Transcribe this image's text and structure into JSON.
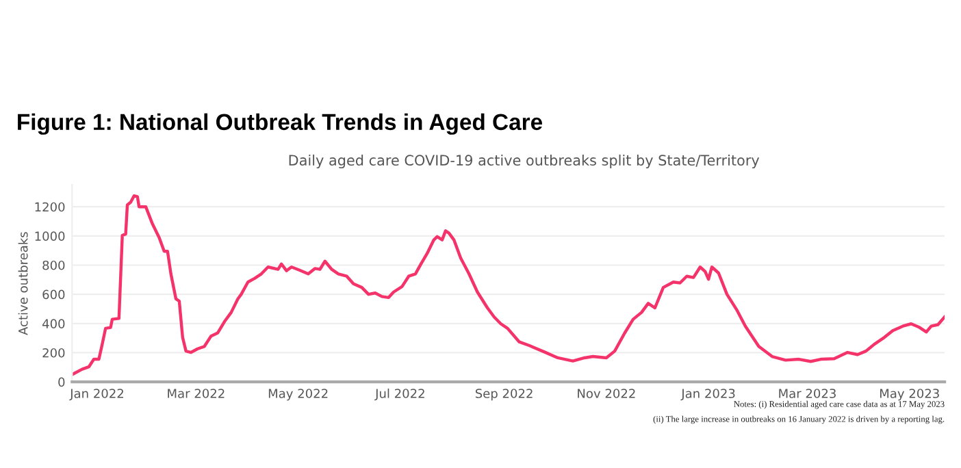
{
  "chart_data": {
    "type": "line",
    "title": "Figure 1: National Outbreak Trends in Aged Care",
    "subtitle": "Daily aged care COVID-19 active outbreaks split by State/Territory",
    "ylabel": "Active outbreaks",
    "annotations": [
      "Notes: (i) Residential aged care case data as at 17 May 2023",
      "(ii) The large increase in outbreaks on 16 January 2022 is driven by a reporting lag."
    ],
    "x": [
      "2021-12-17",
      "2021-12-23",
      "2021-12-27",
      "2021-12-30",
      "2022-01-02",
      "2022-01-04",
      "2022-01-06",
      "2022-01-09",
      "2022-01-10",
      "2022-01-14",
      "2022-01-16",
      "2022-01-18",
      "2022-01-19",
      "2022-01-21",
      "2022-01-23",
      "2022-01-25",
      "2022-01-26",
      "2022-01-30",
      "2022-02-03",
      "2022-02-07",
      "2022-02-10",
      "2022-02-12",
      "2022-02-14",
      "2022-02-17",
      "2022-02-19",
      "2022-02-21",
      "2022-02-23",
      "2022-02-26",
      "2022-03-02",
      "2022-03-06",
      "2022-03-10",
      "2022-03-14",
      "2022-03-18",
      "2022-03-22",
      "2022-03-26",
      "2022-03-28",
      "2022-04-01",
      "2022-04-05",
      "2022-04-09",
      "2022-04-13",
      "2022-04-19",
      "2022-04-21",
      "2022-04-24",
      "2022-04-27",
      "2022-05-02",
      "2022-05-07",
      "2022-05-11",
      "2022-05-14",
      "2022-05-17",
      "2022-05-21",
      "2022-05-25",
      "2022-05-30",
      "2022-06-03",
      "2022-06-08",
      "2022-06-12",
      "2022-06-16",
      "2022-06-20",
      "2022-06-24",
      "2022-06-27",
      "2022-07-02",
      "2022-07-06",
      "2022-07-10",
      "2022-07-13",
      "2022-07-17",
      "2022-07-21",
      "2022-07-23",
      "2022-07-26",
      "2022-07-28",
      "2022-07-30",
      "2022-08-02",
      "2022-08-06",
      "2022-08-11",
      "2022-08-16",
      "2022-08-22",
      "2022-08-26",
      "2022-08-30",
      "2022-09-03",
      "2022-09-10",
      "2022-09-16",
      "2022-09-25",
      "2022-10-03",
      "2022-10-12",
      "2022-10-19",
      "2022-10-24",
      "2022-11-01",
      "2022-11-06",
      "2022-11-12",
      "2022-11-17",
      "2022-11-22",
      "2022-11-26",
      "2022-11-30",
      "2022-12-05",
      "2022-12-11",
      "2022-12-15",
      "2022-12-19",
      "2022-12-23",
      "2022-12-27",
      "2022-12-30",
      "2023-01-01",
      "2023-01-03",
      "2023-01-07",
      "2023-01-12",
      "2023-01-18",
      "2023-01-23",
      "2023-01-31",
      "2023-02-08",
      "2023-02-16",
      "2023-02-24",
      "2023-03-03",
      "2023-03-09",
      "2023-03-17",
      "2023-03-25",
      "2023-03-31",
      "2023-04-05",
      "2023-04-10",
      "2023-04-16",
      "2023-04-21",
      "2023-04-27",
      "2023-05-02",
      "2023-05-07",
      "2023-05-11",
      "2023-05-14",
      "2023-05-18",
      "2023-05-22"
    ],
    "series": [
      {
        "color": "#f5336b",
        "values": [
          50,
          87,
          103,
          155,
          155,
          258,
          367,
          373,
          429,
          435,
          1004,
          1013,
          1213,
          1231,
          1275,
          1269,
          1200,
          1200,
          1082,
          989,
          895,
          895,
          740,
          569,
          553,
          305,
          211,
          202,
          227,
          243,
          314,
          336,
          413,
          476,
          569,
          600,
          684,
          709,
          740,
          787,
          771,
          808,
          762,
          787,
          765,
          740,
          777,
          771,
          827,
          771,
          740,
          724,
          672,
          647,
          600,
          609,
          585,
          578,
          616,
          653,
          724,
          740,
          802,
          880,
          973,
          995,
          973,
          1035,
          1020,
          973,
          849,
          740,
          616,
          507,
          445,
          398,
          367,
          274,
          249,
          205,
          165,
          143,
          165,
          174,
          165,
          211,
          336,
          429,
          476,
          538,
          507,
          647,
          684,
          678,
          724,
          715,
          787,
          756,
          703,
          787,
          746,
          600,
          491,
          382,
          243,
          174,
          149,
          155,
          140,
          155,
          159,
          202,
          187,
          211,
          258,
          305,
          351,
          382,
          398,
          373,
          342,
          382,
          392,
          445
        ]
      }
    ],
    "xlim": [
      "2021-12-17",
      "2023-05-22"
    ],
    "xticks": [
      {
        "value": "2022-01-01",
        "label": "Jan 2022"
      },
      {
        "value": "2022-03-01",
        "label": "Mar 2022"
      },
      {
        "value": "2022-05-01",
        "label": "May 2022"
      },
      {
        "value": "2022-07-01",
        "label": "Jul 2022"
      },
      {
        "value": "2022-09-01",
        "label": "Sep 2022"
      },
      {
        "value": "2022-11-01",
        "label": "Nov 2022"
      },
      {
        "value": "2023-01-01",
        "label": "Jan 2023"
      },
      {
        "value": "2023-03-01",
        "label": "Mar 2023"
      },
      {
        "value": "2023-05-01",
        "label": "May 2023"
      }
    ],
    "ylim": [
      0,
      1350
    ],
    "yticks": [
      0,
      200,
      400,
      600,
      800,
      1000,
      1200
    ],
    "grid": "y",
    "marker": "none",
    "line_style": "solid"
  }
}
